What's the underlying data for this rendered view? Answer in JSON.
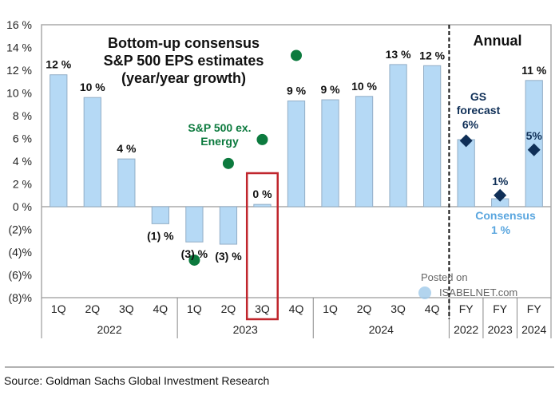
{
  "chart_data": {
    "type": "bar",
    "title": [
      "Bottom-up consensus",
      "S&P 500 EPS estimates",
      "(year/year growth)"
    ],
    "xlabel": "",
    "ylabel": "",
    "ylim": [
      -8,
      16
    ],
    "yticks": [
      16,
      14,
      12,
      10,
      8,
      6,
      4,
      2,
      0,
      -2,
      -4,
      -6,
      -8
    ],
    "ytick_labels": [
      "16 %",
      "14 %",
      "12 %",
      "10 %",
      "8 %",
      "6 %",
      "4 %",
      "2 %",
      "0 %",
      "(2)%",
      "(4)%",
      "(6)%",
      "(8)%"
    ],
    "grid": false,
    "categories": [
      "1Q",
      "2Q",
      "3Q",
      "4Q",
      "1Q",
      "2Q",
      "3Q",
      "4Q",
      "1Q",
      "2Q",
      "3Q",
      "4Q",
      "FY",
      "FY",
      "FY"
    ],
    "category_groups": [
      {
        "label": "2022",
        "span": 4
      },
      {
        "label": "2023",
        "span": 4
      },
      {
        "label": "2024",
        "span": 4
      },
      {
        "label": "2022",
        "span": 1
      },
      {
        "label": "2023",
        "span": 1
      },
      {
        "label": "2024",
        "span": 1
      }
    ],
    "series": [
      {
        "name": "Bottom-up consensus",
        "type": "bar",
        "color": "#b5d9f5",
        "values": [
          11.6,
          9.6,
          4.2,
          -1.5,
          -3.1,
          -3.3,
          0.2,
          9.3,
          9.4,
          9.7,
          12.5,
          12.4,
          5.9,
          0.7,
          11.1
        ],
        "data_labels": [
          "12 %",
          "10 %",
          "4 %",
          "(1) %",
          "(3) %",
          "(3) %",
          "0 %",
          "9 %",
          "9 %",
          "10 %",
          "13 %",
          "12 %",
          null,
          null,
          "11 %"
        ]
      },
      {
        "name": "S&P 500 ex. Energy",
        "type": "scatter",
        "marker": "circle",
        "color": "#0c7a3e",
        "points": [
          {
            "index": 4,
            "value": -4.7
          },
          {
            "index": 5,
            "value": 3.8
          },
          {
            "index": 6,
            "value": 5.9
          },
          {
            "index": 7,
            "value": 13.3
          }
        ]
      },
      {
        "name": "GS forecast",
        "type": "scatter",
        "marker": "diamond",
        "color": "#0f2f57",
        "points": [
          {
            "index": 12,
            "value": 5.8,
            "label": "6%"
          },
          {
            "index": 13,
            "value": 1.0,
            "label": "1%"
          },
          {
            "index": 14,
            "value": 5.0,
            "label": "5%"
          }
        ]
      }
    ],
    "highlight": {
      "index": 6,
      "color": "#c0262d"
    },
    "divider_after_index": 11,
    "annotations": {
      "annual": "Annual",
      "green_label": [
        "S&P 500 ex.",
        "Energy"
      ],
      "gs_label": [
        "GS",
        "forecast",
        "6%"
      ],
      "consensus_label": [
        "Consensus",
        "1 %"
      ]
    }
  },
  "watermark": {
    "line1": "Posted on",
    "line2": "ISABELNET.com"
  },
  "source": "Source: Goldman Sachs Global Investment Research"
}
